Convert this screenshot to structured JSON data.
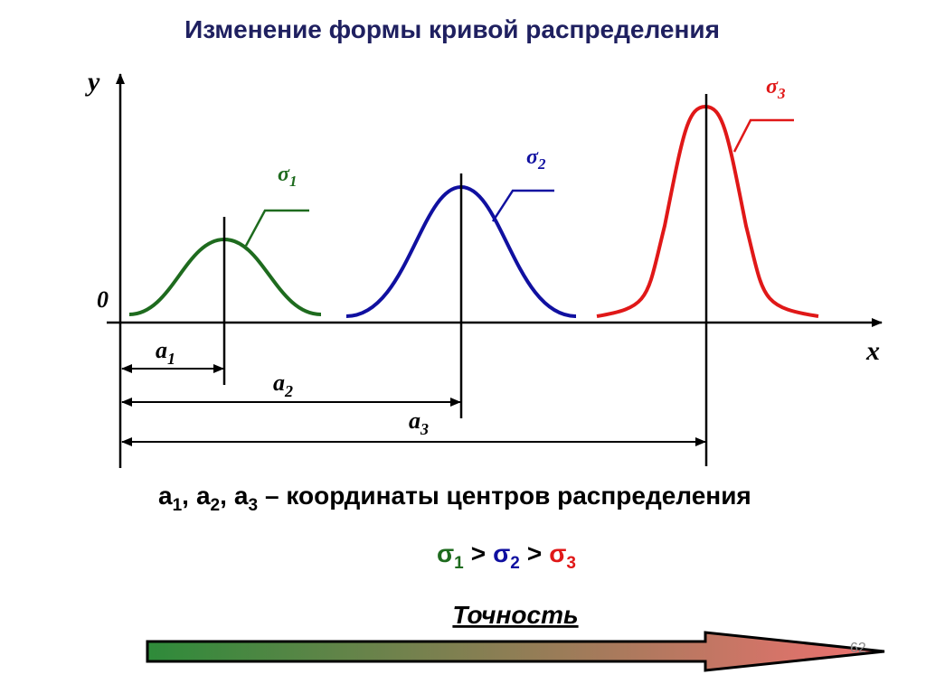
{
  "header": {
    "title": "Изменение формы кривой распределения"
  },
  "axes": {
    "y": "y",
    "x": "x",
    "origin": "0"
  },
  "curves": [
    {
      "symbol": "σ",
      "index": "1"
    },
    {
      "symbol": "σ",
      "index": "2"
    },
    {
      "symbol": "σ",
      "index": "3"
    }
  ],
  "centers": [
    {
      "letter": "a",
      "index": "1"
    },
    {
      "letter": "a",
      "index": "2"
    },
    {
      "letter": "a",
      "index": "3"
    }
  ],
  "caption": {
    "separator": ",",
    "text": "– координаты центров распределения"
  },
  "comparison": {
    "relation": ">"
  },
  "accuracy": {
    "label": "Точность"
  },
  "page_number": "62"
}
